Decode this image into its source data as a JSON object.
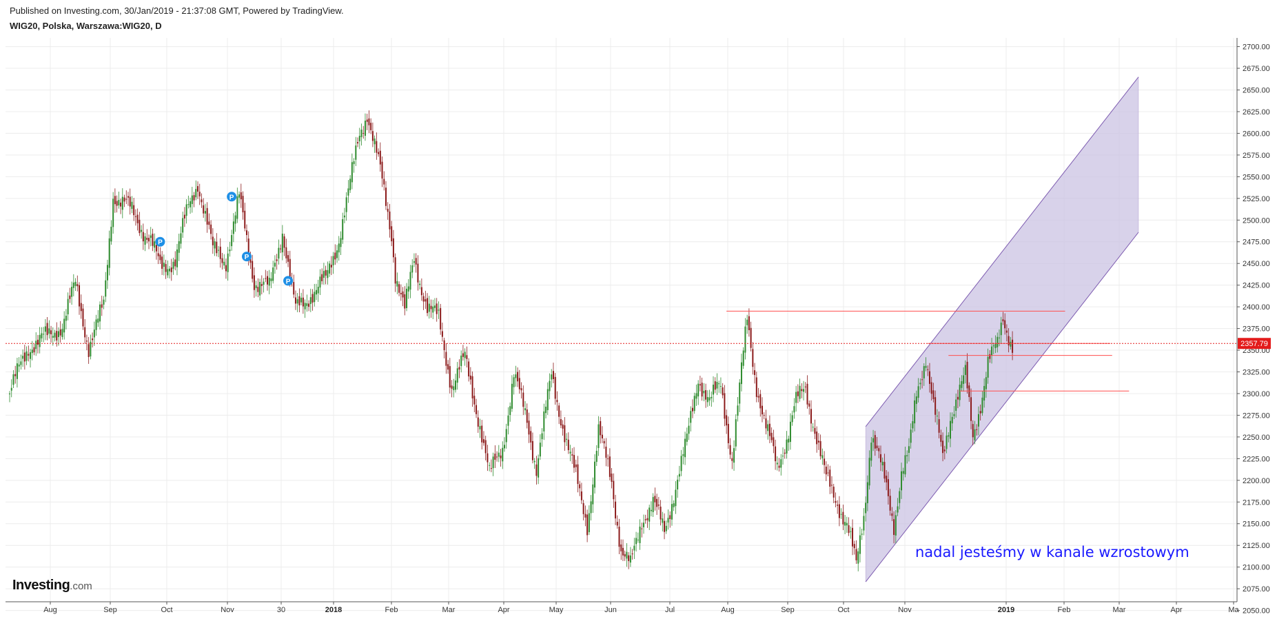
{
  "header": {
    "published": "Published on Investing.com, 30/Jan/2019 - 21:37:08 GMT, Powered by TradingView.",
    "symbol": "WIG20, Polska, Warszawa:WIG20, D"
  },
  "logo": {
    "brand": "Investing",
    "suffix": ".com"
  },
  "annotation": {
    "text": "nadal jesteśmy w kanale wzrostowym",
    "color": "#1a1aff"
  },
  "colors": {
    "up": "#2e8b2e",
    "down": "#8b1a1a",
    "grid": "#ececec",
    "channel_fill": "#cbc3e3",
    "channel_line": "#7d5bb0",
    "hline": "#ff4d4d",
    "price_tag": "#e31b1b",
    "marker": "#1e8fe6"
  },
  "chart_data": {
    "type": "candlestick",
    "title": "WIG20, Polska, Warszawa:WIG20, D",
    "ylim": [
      2060,
      2710
    ],
    "y_ticks": [
      "2700.00",
      "2675.00",
      "2650.00",
      "2625.00",
      "2600.00",
      "2575.00",
      "2550.00",
      "2525.00",
      "2500.00",
      "2475.00",
      "2450.00",
      "2425.00",
      "2400.00",
      "2375.00",
      "2350.00",
      "2325.00",
      "2300.00",
      "2275.00",
      "2250.00",
      "2225.00",
      "2200.00",
      "2175.00",
      "2150.00",
      "2125.00",
      "2100.00",
      "2075.00",
      "2050.00"
    ],
    "x_ticks": [
      {
        "label": "Aug",
        "bold": false
      },
      {
        "label": "Sep",
        "bold": false
      },
      {
        "label": "Oct",
        "bold": false
      },
      {
        "label": "Nov",
        "bold": false
      },
      {
        "label": "30",
        "bold": false
      },
      {
        "label": "2018",
        "bold": true
      },
      {
        "label": "Feb",
        "bold": false
      },
      {
        "label": "Mar",
        "bold": false
      },
      {
        "label": "Apr",
        "bold": false
      },
      {
        "label": "May",
        "bold": false
      },
      {
        "label": "Jun",
        "bold": false
      },
      {
        "label": "Jul",
        "bold": false
      },
      {
        "label": "Aug",
        "bold": false
      },
      {
        "label": "Sep",
        "bold": false
      },
      {
        "label": "Oct",
        "bold": false
      },
      {
        "label": "Nov",
        "bold": false
      },
      {
        "label": "2019",
        "bold": true
      },
      {
        "label": "Feb",
        "bold": false
      },
      {
        "label": "Mar",
        "bold": false
      },
      {
        "label": "Apr",
        "bold": false
      },
      {
        "label": "Ma",
        "bold": false
      }
    ],
    "last_price": "2357.79",
    "last_value": 2357.79,
    "close_anchors": [
      [
        0,
        2300
      ],
      [
        10,
        2355
      ],
      [
        20,
        2365
      ],
      [
        28,
        2380
      ],
      [
        35,
        2425
      ],
      [
        42,
        2355
      ],
      [
        50,
        2400
      ],
      [
        55,
        2530
      ],
      [
        65,
        2510
      ],
      [
        75,
        2475
      ],
      [
        80,
        2445
      ],
      [
        88,
        2455
      ],
      [
        95,
        2515
      ],
      [
        100,
        2545
      ],
      [
        108,
        2465
      ],
      [
        115,
        2455
      ],
      [
        122,
        2525
      ],
      [
        130,
        2430
      ],
      [
        138,
        2420
      ],
      [
        145,
        2490
      ],
      [
        152,
        2395
      ],
      [
        160,
        2415
      ],
      [
        168,
        2430
      ],
      [
        175,
        2480
      ],
      [
        180,
        2530
      ],
      [
        186,
        2600
      ],
      [
        190,
        2625
      ],
      [
        197,
        2555
      ],
      [
        203,
        2485
      ],
      [
        205,
        2440
      ],
      [
        210,
        2395
      ],
      [
        215,
        2455
      ],
      [
        222,
        2400
      ],
      [
        228,
        2385
      ],
      [
        235,
        2310
      ],
      [
        242,
        2340
      ],
      [
        250,
        2265
      ],
      [
        255,
        2205
      ],
      [
        262,
        2240
      ],
      [
        268,
        2320
      ],
      [
        275,
        2270
      ],
      [
        280,
        2215
      ],
      [
        288,
        2320
      ],
      [
        295,
        2255
      ],
      [
        300,
        2210
      ],
      [
        307,
        2150
      ],
      [
        313,
        2255
      ],
      [
        320,
        2200
      ],
      [
        325,
        2120
      ],
      [
        330,
        2100
      ],
      [
        336,
        2155
      ],
      [
        342,
        2175
      ],
      [
        348,
        2140
      ],
      [
        354,
        2195
      ],
      [
        360,
        2245
      ],
      [
        366,
        2320
      ],
      [
        372,
        2290
      ],
      [
        378,
        2310
      ],
      [
        384,
        2225
      ],
      [
        388,
        2305
      ],
      [
        392,
        2385
      ],
      [
        397,
        2310
      ],
      [
        402,
        2260
      ],
      [
        408,
        2215
      ],
      [
        413,
        2250
      ],
      [
        418,
        2290
      ],
      [
        423,
        2305
      ],
      [
        428,
        2260
      ],
      [
        434,
        2200
      ],
      [
        440,
        2175
      ],
      [
        445,
        2150
      ],
      [
        450,
        2100
      ],
      [
        454,
        2160
      ],
      [
        458,
        2255
      ],
      [
        462,
        2225
      ],
      [
        466,
        2190
      ],
      [
        470,
        2150
      ],
      [
        474,
        2210
      ],
      [
        478,
        2230
      ],
      [
        482,
        2300
      ],
      [
        487,
        2345
      ],
      [
        491,
        2285
      ],
      [
        496,
        2225
      ],
      [
        500,
        2275
      ],
      [
        504,
        2300
      ],
      [
        508,
        2320
      ],
      [
        512,
        2250
      ],
      [
        516,
        2290
      ],
      [
        520,
        2335
      ],
      [
        525,
        2355
      ],
      [
        528,
        2390
      ],
      [
        533,
        2355
      ]
    ],
    "channel": {
      "upper": [
        {
          "x": 455,
          "y": 2262
        },
        {
          "x": 600,
          "y": 2665
        }
      ],
      "lower": [
        {
          "x": 455,
          "y": 2083
        },
        {
          "x": 600,
          "y": 2486
        }
      ]
    },
    "horizontal_lines": [
      {
        "y": 2395,
        "x_start": 381,
        "x_end": 561
      },
      {
        "y": 2357.79,
        "x_start": 488,
        "x_end": 585
      },
      {
        "y": 2344,
        "x_start": 499,
        "x_end": 586
      },
      {
        "y": 2303,
        "x_start": 505,
        "x_end": 595
      }
    ],
    "markers": [
      {
        "x": 80,
        "y": 2475,
        "label": "P"
      },
      {
        "x": 118,
        "y": 2527,
        "label": "P"
      },
      {
        "x": 126,
        "y": 2458,
        "label": "P"
      },
      {
        "x": 148,
        "y": 2430,
        "label": "P"
      }
    ]
  }
}
